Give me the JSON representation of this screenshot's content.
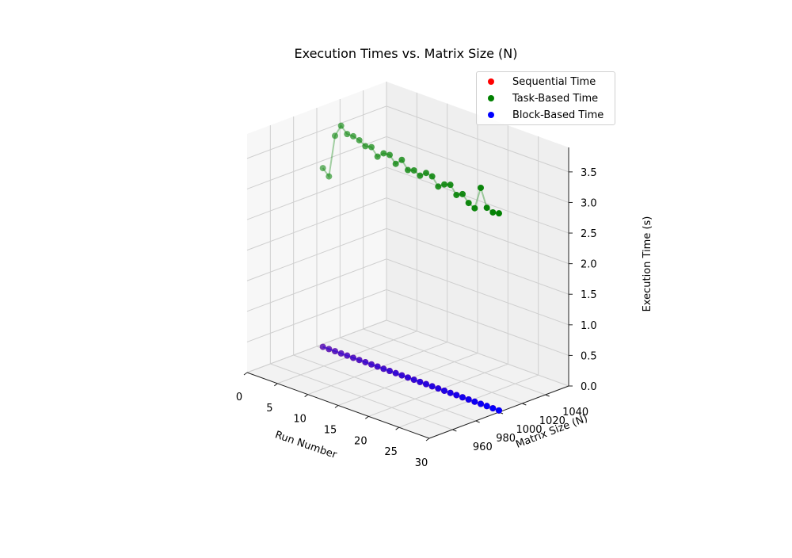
{
  "chart_data": {
    "type": "scatter",
    "subtype": "3d-scatter-with-lines",
    "title": "Execution Times vs. Matrix Size (N)",
    "xlabel": "Run Number",
    "ylabel": "Matrix Size (N)",
    "zlabel": "Execution Time (s)",
    "x_ticks": [
      "0",
      "5",
      "10",
      "15",
      "20",
      "25",
      "30"
    ],
    "y_ticks": [
      "960",
      "980",
      "1000",
      "1020",
      "1040"
    ],
    "z_ticks": [
      "0.0",
      "0.5",
      "1.0",
      "1.5",
      "2.0",
      "2.5",
      "3.0",
      "3.5"
    ],
    "xlim": [
      0,
      30
    ],
    "ylim": [
      940,
      1060
    ],
    "zlim": [
      0,
      3.9
    ],
    "grid": true,
    "legend_position": "top-right",
    "x": [
      1,
      2,
      3,
      4,
      5,
      6,
      7,
      8,
      9,
      10,
      11,
      12,
      13,
      14,
      15,
      16,
      17,
      18,
      19,
      20,
      21,
      22,
      23,
      24,
      25,
      26,
      27,
      28,
      29,
      30
    ],
    "matrix_size": 1000,
    "series": [
      {
        "name": "Sequential Time",
        "color": "#ff0000",
        "values": [
          0.028,
          0.028,
          0.028,
          0.028,
          0.028,
          0.028,
          0.028,
          0.028,
          0.028,
          0.028,
          0.028,
          0.028,
          0.028,
          0.028,
          0.028,
          0.028,
          0.028,
          0.028,
          0.028,
          0.028,
          0.028,
          0.028,
          0.028,
          0.028,
          0.028,
          0.028,
          0.028,
          0.028,
          0.028,
          0.028
        ]
      },
      {
        "name": "Task-Based Time",
        "color": "#008000",
        "values": [
          2.95,
          2.85,
          3.55,
          3.75,
          3.65,
          3.65,
          3.62,
          3.56,
          3.58,
          3.46,
          3.55,
          3.56,
          3.45,
          3.55,
          3.42,
          3.45,
          3.4,
          3.48,
          3.46,
          3.33,
          3.4,
          3.43,
          3.3,
          3.35,
          3.24,
          3.19,
          3.56,
          3.27,
          3.23,
          3.25
        ]
      },
      {
        "name": "Block-Based Time",
        "color": "#0000ff",
        "values": [
          0.028,
          0.028,
          0.028,
          0.028,
          0.028,
          0.028,
          0.028,
          0.028,
          0.028,
          0.028,
          0.028,
          0.028,
          0.028,
          0.028,
          0.028,
          0.028,
          0.028,
          0.028,
          0.028,
          0.028,
          0.028,
          0.028,
          0.028,
          0.028,
          0.028,
          0.028,
          0.028,
          0.028,
          0.028,
          0.028
        ]
      }
    ]
  }
}
